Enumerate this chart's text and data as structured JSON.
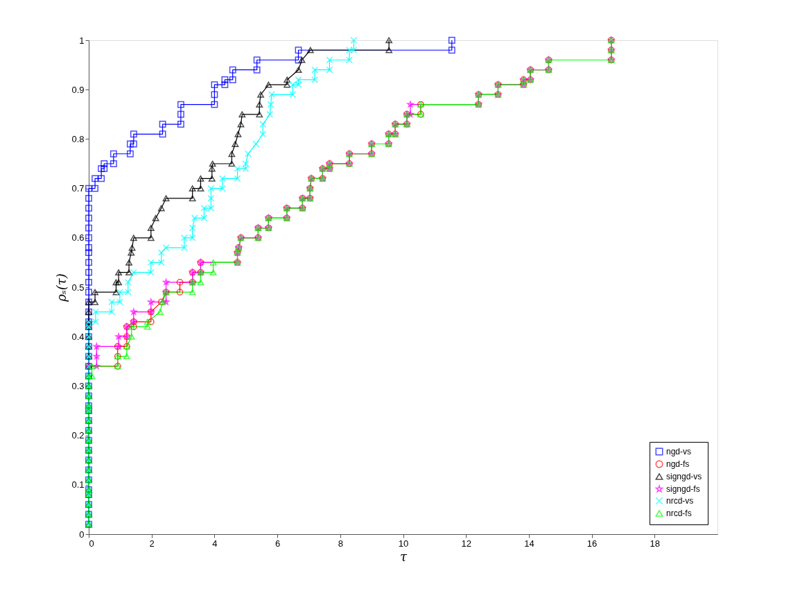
{
  "chart_data": {
    "type": "line",
    "xlabel": "τ",
    "ylabel": "ρₛ(τ)",
    "xlim": [
      0,
      20
    ],
    "xticks": [
      0,
      2,
      4,
      6,
      8,
      10,
      12,
      14,
      16,
      18
    ],
    "ylim": [
      0,
      1
    ],
    "yticks": [
      0,
      0.1,
      0.2,
      0.3,
      0.4,
      0.5,
      0.6,
      0.7,
      0.8,
      0.9,
      1
    ],
    "grid": false,
    "legend": "bottom right",
    "series": [
      {
        "name": "ngd-vs",
        "color": "#0000ff",
        "marker": "square",
        "x": [
          0,
          0,
          0,
          0,
          0,
          0,
          0,
          0,
          0,
          0,
          0,
          0,
          0,
          0,
          0,
          0,
          0,
          0,
          0,
          0,
          0,
          0,
          0,
          0,
          0,
          0,
          0,
          0,
          0,
          0,
          0,
          0,
          0,
          0,
          0,
          0,
          0,
          0.2,
          0.2,
          0.4,
          0.4,
          0.49,
          0.49,
          0.79,
          0.79,
          1.32,
          1.32,
          1.43,
          1.43,
          2.35,
          2.35,
          2.93,
          2.93,
          2.93,
          4.0,
          4.0,
          4.0,
          4.33,
          4.33,
          4.58,
          4.58,
          5.35,
          5.35,
          6.67,
          6.67,
          11.55,
          11.55
        ],
        "values": [
          0.02,
          0.04,
          0.06,
          0.08,
          0.09,
          0.11,
          0.13,
          0.15,
          0.17,
          0.19,
          0.21,
          0.23,
          0.25,
          0.26,
          0.28,
          0.3,
          0.32,
          0.34,
          0.36,
          0.38,
          0.4,
          0.42,
          0.43,
          0.45,
          0.47,
          0.49,
          0.51,
          0.53,
          0.55,
          0.57,
          0.58,
          0.6,
          0.62,
          0.64,
          0.66,
          0.68,
          0.7,
          0.7,
          0.72,
          0.72,
          0.74,
          0.74,
          0.75,
          0.75,
          0.77,
          0.77,
          0.79,
          0.79,
          0.81,
          0.81,
          0.83,
          0.83,
          0.85,
          0.87,
          0.87,
          0.89,
          0.91,
          0.91,
          0.92,
          0.92,
          0.94,
          0.94,
          0.96,
          0.96,
          0.98,
          0.98,
          1
        ]
      },
      {
        "name": "ngd-fs",
        "color": "#ff0000",
        "marker": "circle",
        "x": [
          0,
          0.92,
          0.92,
          0.92,
          1.21,
          1.21,
          1.21,
          1.43,
          1.43,
          1.98,
          1.98,
          2.31,
          2.46,
          2.9,
          2.9,
          3.3,
          3.3,
          3.56,
          3.56,
          4.73,
          4.73,
          4.77,
          4.84,
          5.39,
          5.39,
          5.72,
          5.72,
          6.3,
          6.3,
          6.8,
          6.8,
          7.04,
          7.04,
          7.08,
          7.44,
          7.44,
          7.66,
          7.66,
          8.29,
          8.29,
          9.0,
          9.0,
          9.54,
          9.54,
          9.75,
          9.75,
          10.12,
          10.12,
          10.56,
          10.56,
          12.4,
          12.4,
          13.02,
          13.02,
          13.83,
          13.83,
          14.05,
          14.05,
          14.63,
          14.63,
          16.62,
          16.62,
          16.62
        ],
        "values": [
          0.34,
          0.34,
          0.36,
          0.38,
          0.38,
          0.4,
          0.42,
          0.42,
          0.43,
          0.43,
          0.45,
          0.47,
          0.49,
          0.49,
          0.51,
          0.51,
          0.53,
          0.53,
          0.55,
          0.55,
          0.57,
          0.58,
          0.6,
          0.6,
          0.62,
          0.62,
          0.64,
          0.64,
          0.66,
          0.66,
          0.68,
          0.68,
          0.7,
          0.72,
          0.72,
          0.74,
          0.74,
          0.75,
          0.75,
          0.77,
          0.77,
          0.79,
          0.79,
          0.81,
          0.81,
          0.83,
          0.83,
          0.85,
          0.85,
          0.87,
          0.87,
          0.89,
          0.89,
          0.91,
          0.91,
          0.92,
          0.92,
          0.94,
          0.94,
          0.96,
          0.96,
          0.98,
          1
        ]
      },
      {
        "name": "signgd-vs",
        "color": "#000000",
        "marker": "triangle",
        "x": [
          0,
          0,
          0,
          0,
          0,
          0,
          0,
          0,
          0,
          0,
          0,
          0,
          0,
          0,
          0,
          0,
          0,
          0,
          0,
          0,
          0,
          0,
          0,
          0,
          0,
          0.2,
          0.2,
          0.87,
          0.87,
          0.95,
          0.95,
          1.28,
          1.28,
          1.35,
          1.38,
          1.43,
          1.98,
          1.98,
          2.13,
          2.31,
          2.46,
          3.3,
          3.3,
          3.56,
          3.56,
          3.92,
          3.92,
          3.94,
          4.55,
          4.55,
          4.66,
          4.75,
          4.84,
          4.88,
          5.43,
          5.43,
          5.47,
          5.72,
          6.31,
          6.31,
          6.67,
          6.78,
          7.05,
          9.55,
          9.55
        ],
        "values": [
          0.02,
          0.04,
          0.06,
          0.08,
          0.09,
          0.11,
          0.13,
          0.15,
          0.17,
          0.19,
          0.21,
          0.23,
          0.25,
          0.26,
          0.28,
          0.3,
          0.32,
          0.34,
          0.36,
          0.38,
          0.4,
          0.42,
          0.43,
          0.45,
          0.47,
          0.47,
          0.49,
          0.49,
          0.51,
          0.51,
          0.53,
          0.53,
          0.55,
          0.57,
          0.58,
          0.6,
          0.6,
          0.62,
          0.64,
          0.66,
          0.68,
          0.68,
          0.7,
          0.7,
          0.72,
          0.72,
          0.74,
          0.75,
          0.75,
          0.77,
          0.79,
          0.81,
          0.83,
          0.85,
          0.85,
          0.87,
          0.89,
          0.91,
          0.91,
          0.92,
          0.94,
          0.96,
          0.98,
          0.98,
          1
        ]
      },
      {
        "name": "signgd-fs",
        "color": "#ff00ff",
        "marker": "star",
        "x": [
          0,
          0.25,
          0.25,
          0.25,
          0.95,
          0.95,
          1.21,
          1.21,
          1.43,
          1.43,
          1.98,
          1.98,
          2.46,
          2.46,
          2.46,
          3.3,
          3.3,
          3.56,
          3.56,
          4.73,
          4.73,
          4.77,
          4.84,
          5.39,
          5.39,
          5.72,
          5.72,
          6.3,
          6.3,
          6.8,
          6.8,
          7.04,
          7.04,
          7.08,
          7.44,
          7.44,
          7.66,
          7.66,
          8.29,
          8.29,
          9.0,
          9.0,
          9.54,
          9.54,
          9.75,
          9.75,
          10.12,
          10.12,
          10.23,
          10.23,
          12.4,
          12.4,
          13.02,
          13.02,
          13.83,
          13.83,
          14.05,
          14.05,
          14.63,
          14.63,
          16.62,
          16.62,
          16.62
        ],
        "values": [
          0.34,
          0.34,
          0.36,
          0.38,
          0.38,
          0.4,
          0.4,
          0.42,
          0.43,
          0.45,
          0.45,
          0.47,
          0.47,
          0.49,
          0.51,
          0.51,
          0.53,
          0.53,
          0.55,
          0.55,
          0.57,
          0.58,
          0.6,
          0.6,
          0.62,
          0.62,
          0.64,
          0.64,
          0.66,
          0.66,
          0.68,
          0.68,
          0.7,
          0.72,
          0.72,
          0.74,
          0.74,
          0.75,
          0.75,
          0.77,
          0.77,
          0.79,
          0.79,
          0.81,
          0.81,
          0.83,
          0.83,
          0.85,
          0.85,
          0.87,
          0.87,
          0.89,
          0.89,
          0.91,
          0.91,
          0.92,
          0.92,
          0.94,
          0.94,
          0.96,
          0.96,
          0.98,
          1
        ]
      },
      {
        "name": "nrcd-vs",
        "color": "#00ffff",
        "marker": "cross",
        "x": [
          0,
          0,
          0,
          0,
          0,
          0,
          0,
          0,
          0,
          0,
          0,
          0,
          0,
          0,
          0,
          0,
          0,
          0,
          0,
          0,
          0,
          0,
          0,
          0.22,
          0.22,
          0.73,
          0.73,
          0.99,
          0.99,
          1.25,
          1.25,
          1.43,
          1.98,
          1.98,
          2.31,
          2.31,
          2.46,
          3.04,
          3.04,
          3.3,
          3.3,
          3.37,
          3.67,
          3.67,
          3.89,
          3.89,
          3.89,
          4.25,
          4.25,
          4.73,
          4.73,
          4.99,
          4.99,
          5.07,
          5.32,
          5.54,
          5.54,
          5.76,
          5.79,
          5.82,
          6.49,
          6.49,
          6.67,
          6.67,
          7.19,
          7.19,
          7.66,
          7.66,
          8.29,
          8.29,
          8.43,
          8.43
        ],
        "values": [
          0.02,
          0.04,
          0.06,
          0.08,
          0.09,
          0.11,
          0.13,
          0.15,
          0.17,
          0.19,
          0.21,
          0.23,
          0.25,
          0.26,
          0.28,
          0.3,
          0.32,
          0.34,
          0.36,
          0.38,
          0.4,
          0.42,
          0.43,
          0.43,
          0.45,
          0.45,
          0.47,
          0.47,
          0.49,
          0.49,
          0.51,
          0.53,
          0.53,
          0.55,
          0.55,
          0.57,
          0.58,
          0.58,
          0.6,
          0.6,
          0.62,
          0.64,
          0.64,
          0.66,
          0.66,
          0.68,
          0.7,
          0.7,
          0.72,
          0.72,
          0.74,
          0.74,
          0.75,
          0.77,
          0.79,
          0.81,
          0.83,
          0.85,
          0.87,
          0.89,
          0.89,
          0.91,
          0.91,
          0.92,
          0.92,
          0.94,
          0.94,
          0.96,
          0.96,
          0.98,
          0.98,
          1
        ]
      },
      {
        "name": "nrcd-fs",
        "color": "#00ff00",
        "marker": "triangle",
        "x": [
          0,
          0,
          0,
          0,
          0,
          0,
          0,
          0,
          0,
          0,
          0,
          0,
          0,
          0,
          0,
          0,
          0,
          0.1,
          0.1,
          0.92,
          0.92,
          1.21,
          1.21,
          1.36,
          1.36,
          1.87,
          1.87,
          2.27,
          2.35,
          2.46,
          3.3,
          3.3,
          3.56,
          3.56,
          3.96,
          3.96,
          4.73,
          4.73,
          4.77,
          4.84,
          5.39,
          5.39,
          5.72,
          5.72,
          6.3,
          6.3,
          6.8,
          6.8,
          7.04,
          7.04,
          7.08,
          7.44,
          7.44,
          7.66,
          7.66,
          8.29,
          8.29,
          9.0,
          9.0,
          9.54,
          9.54,
          9.75,
          9.75,
          10.12,
          10.12,
          10.56,
          10.56,
          12.4,
          12.4,
          13.02,
          13.02,
          13.83,
          13.83,
          14.05,
          14.05,
          14.63,
          14.63,
          16.62,
          16.62,
          16.62
        ],
        "values": [
          0.02,
          0.04,
          0.06,
          0.08,
          0.09,
          0.11,
          0.13,
          0.15,
          0.17,
          0.19,
          0.21,
          0.23,
          0.25,
          0.26,
          0.28,
          0.3,
          0.32,
          0.32,
          0.34,
          0.34,
          0.36,
          0.36,
          0.38,
          0.4,
          0.42,
          0.42,
          0.43,
          0.45,
          0.47,
          0.49,
          0.49,
          0.51,
          0.51,
          0.53,
          0.53,
          0.55,
          0.55,
          0.57,
          0.58,
          0.6,
          0.6,
          0.62,
          0.62,
          0.64,
          0.64,
          0.66,
          0.66,
          0.68,
          0.68,
          0.7,
          0.72,
          0.72,
          0.74,
          0.74,
          0.75,
          0.75,
          0.77,
          0.77,
          0.79,
          0.79,
          0.81,
          0.81,
          0.83,
          0.83,
          0.85,
          0.85,
          0.87,
          0.87,
          0.89,
          0.89,
          0.91,
          0.91,
          0.92,
          0.92,
          0.94,
          0.94,
          0.96,
          0.96,
          0.98,
          1
        ]
      }
    ]
  }
}
